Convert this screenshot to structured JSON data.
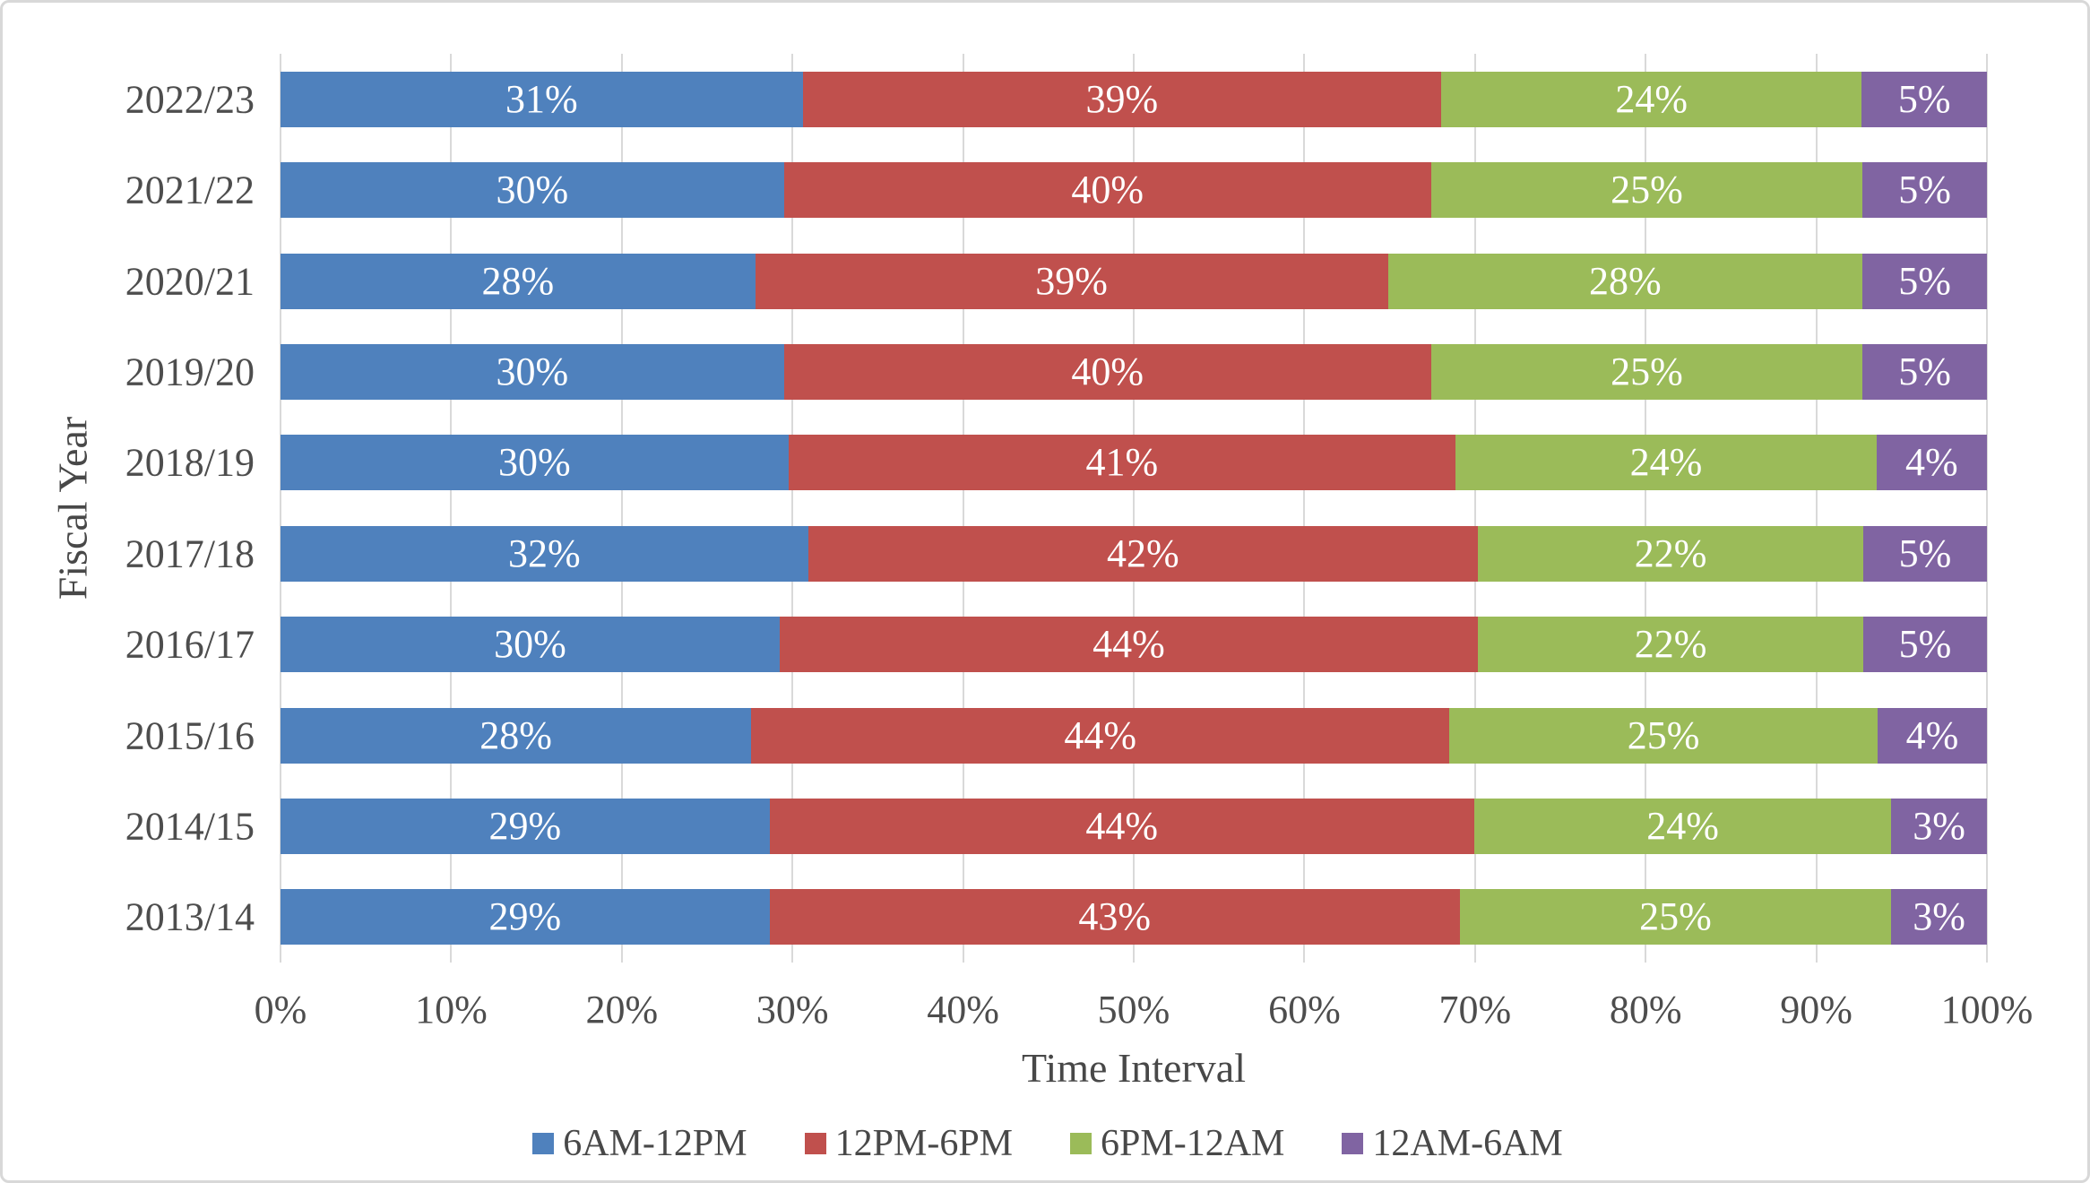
{
  "chart_data": {
    "type": "bar",
    "orientation": "horizontal-stacked",
    "title": "",
    "xlabel": "Time Interval",
    "ylabel": "Fiscal Year",
    "xlim": [
      0,
      100
    ],
    "x_ticks": [
      "0%",
      "10%",
      "20%",
      "30%",
      "40%",
      "50%",
      "60%",
      "70%",
      "80%",
      "90%",
      "100%"
    ],
    "grid": "vertical-only",
    "gridline_color": "#d9d9d9",
    "legend_position": "bottom",
    "data_label_color": "#ffffff",
    "categories": [
      "2022/23",
      "2021/22",
      "2020/21",
      "2019/20",
      "2018/19",
      "2017/18",
      "2016/17",
      "2015/16",
      "2014/15",
      "2013/14"
    ],
    "series": [
      {
        "name": "6AM-12PM",
        "color": "#4f81bd",
        "values": [
          31,
          30,
          28,
          30,
          30,
          32,
          30,
          28,
          29,
          29
        ]
      },
      {
        "name": "12PM-6PM",
        "color": "#c0504d",
        "values": [
          39,
          40,
          39,
          40,
          41,
          42,
          44,
          44,
          44,
          43
        ]
      },
      {
        "name": "6PM-12AM",
        "color": "#9bbb59",
        "values": [
          24,
          25,
          28,
          25,
          24,
          22,
          22,
          25,
          24,
          25
        ]
      },
      {
        "name": "12AM-6AM",
        "color": "#8064a2",
        "values": [
          5,
          5,
          5,
          5,
          4,
          5,
          5,
          4,
          3,
          3
        ]
      }
    ],
    "data_label_suffix": "%"
  }
}
